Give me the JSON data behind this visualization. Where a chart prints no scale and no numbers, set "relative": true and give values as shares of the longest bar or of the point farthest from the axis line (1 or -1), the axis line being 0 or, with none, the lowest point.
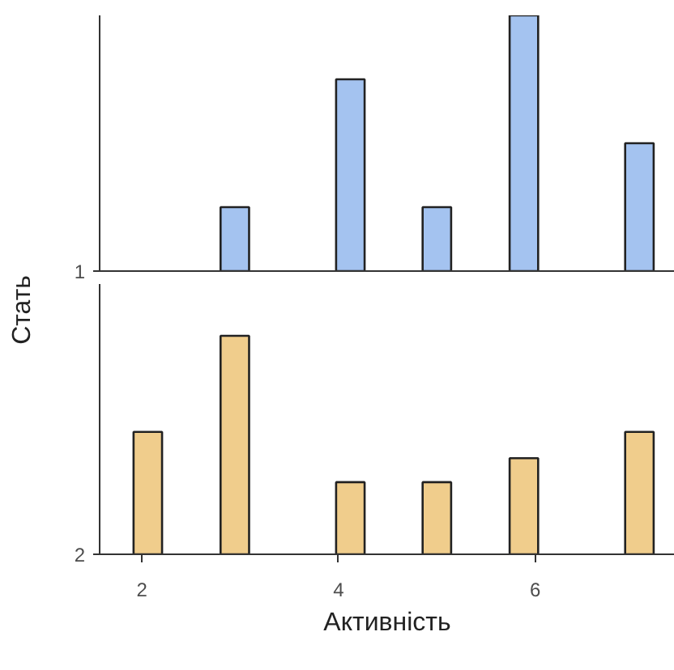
{
  "chart_data": [
    {
      "type": "bar",
      "ylabel": "Стать",
      "relative": true,
      "xlim": [
        1.57,
        7.42
      ],
      "xticks": [
        2,
        4,
        6
      ],
      "tick_labels": false,
      "grid": false,
      "legend": "left",
      "series": [
        {
          "name": "1",
          "color": "#a4c3f0",
          "x": [
            2.945,
            4.12,
            5.0,
            5.885,
            7.06
          ],
          "values": [
            0.25,
            0.75,
            0.25,
            1,
            0.5
          ]
        }
      ]
    },
    {
      "type": "bar",
      "xlabel": "Активність",
      "relative": true,
      "xlim": [
        1.57,
        7.42
      ],
      "xticks": [
        2,
        4,
        6
      ],
      "tick_labels": "x",
      "grid": false,
      "legend": "left",
      "series": [
        {
          "name": "2",
          "color": "#f0cd8c",
          "x": [
            2.06,
            2.945,
            4.12,
            5.0,
            5.885,
            7.06
          ],
          "values": [
            0.56,
            1,
            0.33,
            0.33,
            0.44,
            0.56
          ]
        }
      ]
    }
  ]
}
